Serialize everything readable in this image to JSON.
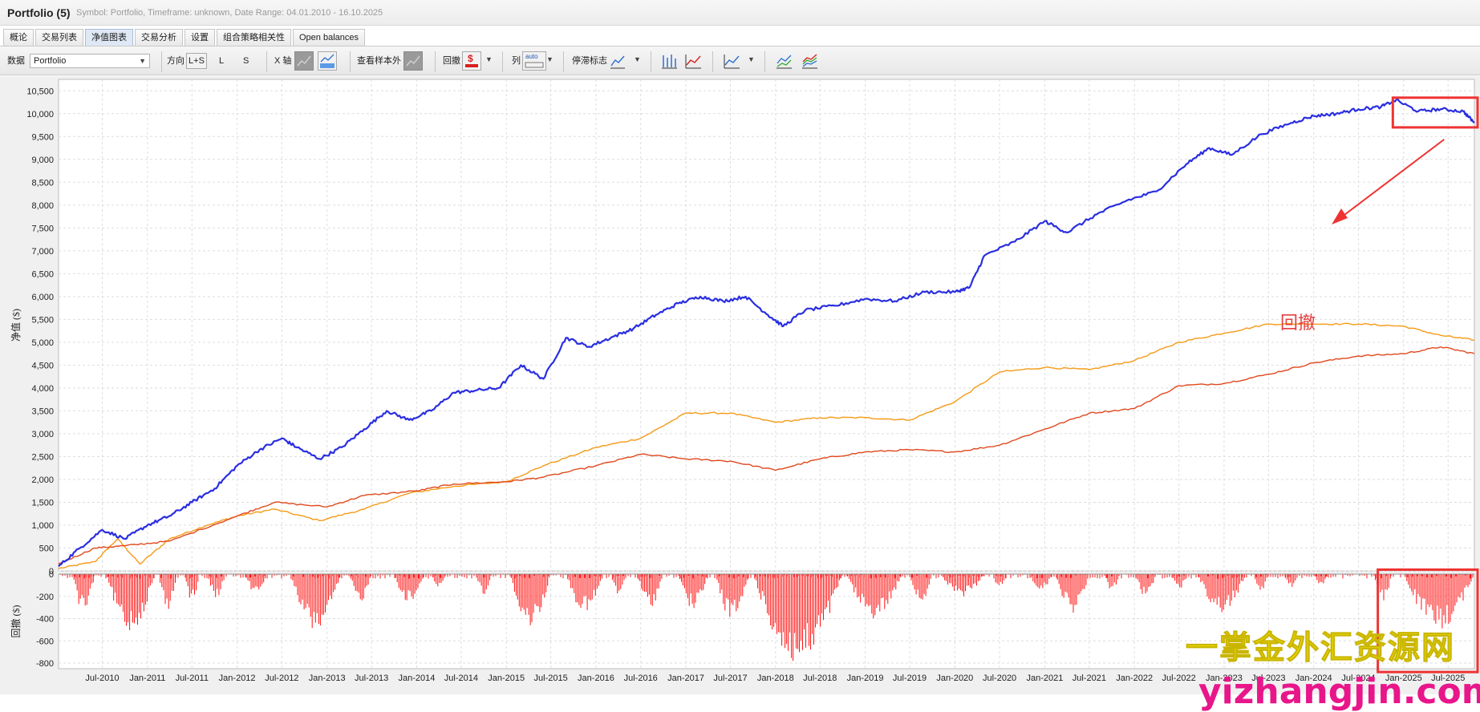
{
  "window": {
    "title": "Portfolio (5)",
    "subtitle": "Symbol: Portfolio, Timeframe: unknown, Date Range: 04.01.2010 - 16.10.2025"
  },
  "tabs": [
    {
      "label": "概论",
      "active": false
    },
    {
      "label": "交易列表",
      "active": false
    },
    {
      "label": "净值图表",
      "active": true
    },
    {
      "label": "交易分析",
      "active": false
    },
    {
      "label": "设置",
      "active": false
    },
    {
      "label": "组合策略相关性",
      "active": false
    },
    {
      "label": "Open balances",
      "active": false
    }
  ],
  "toolbar": {
    "data_label": "数据",
    "data_value": "Portfolio",
    "direction_label": "方向",
    "dir_all": "L+S",
    "dir_long": "L",
    "dir_short": "S",
    "xaxis_label": "X 轴",
    "oos_label": "查看样本外",
    "drawdown_label": "回撤",
    "columns_label": "列",
    "columns_icon_text": "auto",
    "stagnation_label": "停滞标志"
  },
  "annotation": {
    "text": "回撤",
    "color": "#e53f3f"
  },
  "watermark": {
    "cn": "一掌金外汇资源网",
    "en": "yizhangjin.com"
  },
  "colors": {
    "portfolio": "#2a2ee0",
    "strategy_orange": "#f59a16",
    "strategy_red": "#e0481c",
    "drawdown": "#ff1010",
    "highlight": "#ee3333"
  },
  "chart_data": {
    "type": "line",
    "ylabel": "净值 ($)",
    "ylim": [
      0,
      10750
    ],
    "yticks": [
      0,
      500,
      1000,
      1500,
      2000,
      2500,
      3000,
      3500,
      4000,
      4500,
      5000,
      5500,
      6000,
      6500,
      7000,
      7500,
      8000,
      8500,
      9000,
      9500,
      10000,
      10500
    ],
    "ytick_labels": [
      "0",
      "500",
      "1,000",
      "1,500",
      "2,000",
      "2,500",
      "3,000",
      "3,500",
      "4,000",
      "4,500",
      "5,000",
      "5,500",
      "6,000",
      "6,500",
      "7,000",
      "7,500",
      "8,000",
      "8,500",
      "9,000",
      "9,500",
      "10,000",
      "10,500"
    ],
    "x_range": [
      "2010-01-04",
      "2025-10-16"
    ],
    "xtick_labels": [
      "Jul-2010",
      "Jan-2011",
      "Jul-2011",
      "Jan-2012",
      "Jul-2012",
      "Jan-2013",
      "Jul-2013",
      "Jan-2014",
      "Jul-2014",
      "Jan-2015",
      "Jul-2015",
      "Jan-2016",
      "Jul-2016",
      "Jan-2017",
      "Jul-2017",
      "Jan-2018",
      "Jul-2018",
      "Jan-2019",
      "Jul-2019",
      "Jan-2020",
      "Jul-2020",
      "Jan-2021",
      "Jul-2021",
      "Jan-2022",
      "Jul-2022",
      "Jan-2023",
      "Jul-2023",
      "Jan-2024",
      "Jul-2024",
      "Jan-2025",
      "Jul-2025"
    ],
    "grid": true,
    "series": [
      {
        "color_key": "portfolio",
        "points": [
          [
            "2010-01-04",
            100
          ],
          [
            "2010-04-01",
            500
          ],
          [
            "2010-07-01",
            900
          ],
          [
            "2010-10-01",
            700
          ],
          [
            "2011-01-01",
            1000
          ],
          [
            "2011-04-01",
            1200
          ],
          [
            "2011-07-01",
            1500
          ],
          [
            "2011-10-01",
            1800
          ],
          [
            "2012-01-01",
            2300
          ],
          [
            "2012-04-01",
            2650
          ],
          [
            "2012-07-01",
            2900
          ],
          [
            "2012-09-01",
            2700
          ],
          [
            "2012-12-01",
            2450
          ],
          [
            "2013-03-01",
            2700
          ],
          [
            "2013-06-01",
            3100
          ],
          [
            "2013-09-01",
            3500
          ],
          [
            "2013-12-01",
            3300
          ],
          [
            "2014-03-01",
            3500
          ],
          [
            "2014-06-01",
            3900
          ],
          [
            "2014-09-01",
            3950
          ],
          [
            "2014-12-01",
            4000
          ],
          [
            "2015-03-01",
            4500
          ],
          [
            "2015-06-01",
            4200
          ],
          [
            "2015-09-01",
            5100
          ],
          [
            "2015-12-01",
            4900
          ],
          [
            "2016-03-01",
            5100
          ],
          [
            "2016-06-01",
            5300
          ],
          [
            "2016-09-01",
            5600
          ],
          [
            "2016-12-01",
            5850
          ],
          [
            "2017-03-01",
            6000
          ],
          [
            "2017-06-01",
            5900
          ],
          [
            "2017-09-01",
            6000
          ],
          [
            "2017-12-01",
            5600
          ],
          [
            "2018-02-01",
            5350
          ],
          [
            "2018-05-01",
            5700
          ],
          [
            "2018-09-01",
            5800
          ],
          [
            "2019-01-01",
            5950
          ],
          [
            "2019-05-01",
            5900
          ],
          [
            "2019-09-01",
            6100
          ],
          [
            "2020-01-01",
            6100
          ],
          [
            "2020-03-01",
            6200
          ],
          [
            "2020-05-01",
            6900
          ],
          [
            "2020-09-01",
            7200
          ],
          [
            "2021-01-01",
            7650
          ],
          [
            "2021-04-01",
            7400
          ],
          [
            "2021-08-01",
            7800
          ],
          [
            "2021-12-01",
            8100
          ],
          [
            "2022-04-01",
            8300
          ],
          [
            "2022-08-01",
            8900
          ],
          [
            "2022-11-01",
            9250
          ],
          [
            "2023-02-01",
            9100
          ],
          [
            "2023-06-01",
            9550
          ],
          [
            "2023-10-01",
            9800
          ],
          [
            "2024-01-01",
            9950
          ],
          [
            "2024-04-01",
            10000
          ],
          [
            "2024-07-01",
            10100
          ],
          [
            "2024-10-01",
            10150
          ],
          [
            "2024-12-01",
            10300
          ],
          [
            "2025-03-01",
            10050
          ],
          [
            "2025-06-01",
            10100
          ],
          [
            "2025-09-01",
            10050
          ],
          [
            "2025-10-16",
            9800
          ]
        ]
      },
      {
        "color_key": "strategy_orange",
        "points": [
          [
            "2010-01-04",
            50
          ],
          [
            "2010-06-01",
            200
          ],
          [
            "2010-09-01",
            700
          ],
          [
            "2010-12-01",
            150
          ],
          [
            "2011-04-01",
            700
          ],
          [
            "2011-09-01",
            1000
          ],
          [
            "2012-01-01",
            1200
          ],
          [
            "2012-06-01",
            1350
          ],
          [
            "2012-12-01",
            1100
          ],
          [
            "2013-06-01",
            1350
          ],
          [
            "2013-12-01",
            1700
          ],
          [
            "2014-06-01",
            1850
          ],
          [
            "2015-01-01",
            1950
          ],
          [
            "2015-06-01",
            2300
          ],
          [
            "2016-01-01",
            2700
          ],
          [
            "2016-07-01",
            2900
          ],
          [
            "2017-01-01",
            3450
          ],
          [
            "2017-07-01",
            3450
          ],
          [
            "2018-01-01",
            3250
          ],
          [
            "2018-07-01",
            3350
          ],
          [
            "2019-01-01",
            3350
          ],
          [
            "2019-07-01",
            3300
          ],
          [
            "2020-01-01",
            3700
          ],
          [
            "2020-07-01",
            4350
          ],
          [
            "2021-01-01",
            4450
          ],
          [
            "2021-07-01",
            4400
          ],
          [
            "2022-01-01",
            4600
          ],
          [
            "2022-07-01",
            5000
          ],
          [
            "2023-01-01",
            5200
          ],
          [
            "2023-07-01",
            5400
          ],
          [
            "2024-01-01",
            5400
          ],
          [
            "2024-07-01",
            5400
          ],
          [
            "2025-01-01",
            5350
          ],
          [
            "2025-06-01",
            5150
          ],
          [
            "2025-10-16",
            5050
          ]
        ]
      },
      {
        "color_key": "strategy_red",
        "points": [
          [
            "2010-01-04",
            150
          ],
          [
            "2010-06-01",
            500
          ],
          [
            "2010-10-01",
            550
          ],
          [
            "2011-04-01",
            650
          ],
          [
            "2012-01-01",
            1200
          ],
          [
            "2012-06-01",
            1500
          ],
          [
            "2013-01-01",
            1400
          ],
          [
            "2013-06-01",
            1650
          ],
          [
            "2014-01-01",
            1750
          ],
          [
            "2014-06-01",
            1900
          ],
          [
            "2015-01-01",
            1950
          ],
          [
            "2015-06-01",
            2050
          ],
          [
            "2016-01-01",
            2300
          ],
          [
            "2016-07-01",
            2550
          ],
          [
            "2017-01-01",
            2450
          ],
          [
            "2017-07-01",
            2400
          ],
          [
            "2018-01-01",
            2200
          ],
          [
            "2018-07-01",
            2450
          ],
          [
            "2019-01-01",
            2600
          ],
          [
            "2019-07-01",
            2650
          ],
          [
            "2020-01-01",
            2600
          ],
          [
            "2020-07-01",
            2750
          ],
          [
            "2021-01-01",
            3100
          ],
          [
            "2021-07-01",
            3450
          ],
          [
            "2022-01-01",
            3550
          ],
          [
            "2022-07-01",
            4050
          ],
          [
            "2023-01-01",
            4100
          ],
          [
            "2023-07-01",
            4300
          ],
          [
            "2024-01-01",
            4550
          ],
          [
            "2024-07-01",
            4700
          ],
          [
            "2025-01-01",
            4750
          ],
          [
            "2025-06-01",
            4900
          ],
          [
            "2025-10-16",
            4750
          ]
        ]
      }
    ],
    "drawdown": {
      "ylabel": "回撤 ($)",
      "ylim": [
        -850,
        0
      ],
      "yticks": [
        0,
        -200,
        -400,
        -600,
        -800
      ],
      "ytick_labels": [
        "0",
        "-200",
        "-400",
        "-600",
        "-800"
      ],
      "episodes": [
        {
          "start": "2010-03-01",
          "end": "2010-06-01",
          "min": -350
        },
        {
          "start": "2010-07-15",
          "end": "2011-02-01",
          "min": -520
        },
        {
          "start": "2011-02-15",
          "end": "2011-05-01",
          "min": -320
        },
        {
          "start": "2011-06-01",
          "end": "2011-08-01",
          "min": -250
        },
        {
          "start": "2011-09-01",
          "end": "2011-11-15",
          "min": -220
        },
        {
          "start": "2012-02-01",
          "end": "2012-05-01",
          "min": -180
        },
        {
          "start": "2012-08-01",
          "end": "2013-03-01",
          "min": -520
        },
        {
          "start": "2013-04-01",
          "end": "2013-07-01",
          "min": -250
        },
        {
          "start": "2013-10-01",
          "end": "2014-02-01",
          "min": -260
        },
        {
          "start": "2014-03-01",
          "end": "2014-05-01",
          "min": -120
        },
        {
          "start": "2014-09-01",
          "end": "2014-11-01",
          "min": -200
        },
        {
          "start": "2015-01-15",
          "end": "2015-07-01",
          "min": -480
        },
        {
          "start": "2015-09-01",
          "end": "2016-02-01",
          "min": -350
        },
        {
          "start": "2016-03-01",
          "end": "2016-05-01",
          "min": -200
        },
        {
          "start": "2016-06-15",
          "end": "2016-10-01",
          "min": -300
        },
        {
          "start": "2016-12-01",
          "end": "2017-04-01",
          "min": -320
        },
        {
          "start": "2017-05-01",
          "end": "2017-09-15",
          "min": -420
        },
        {
          "start": "2017-10-01",
          "end": "2018-10-01",
          "min": -840
        },
        {
          "start": "2018-10-15",
          "end": "2019-06-01",
          "min": -400
        },
        {
          "start": "2019-07-01",
          "end": "2019-10-01",
          "min": -250
        },
        {
          "start": "2019-11-01",
          "end": "2020-05-01",
          "min": -200
        },
        {
          "start": "2020-06-01",
          "end": "2020-08-01",
          "min": -120
        },
        {
          "start": "2020-11-01",
          "end": "2021-02-01",
          "min": -150
        },
        {
          "start": "2021-02-15",
          "end": "2021-07-01",
          "min": -350
        },
        {
          "start": "2021-09-01",
          "end": "2021-11-01",
          "min": -150
        },
        {
          "start": "2022-01-01",
          "end": "2022-04-01",
          "min": -200
        },
        {
          "start": "2022-06-01",
          "end": "2022-08-01",
          "min": -150
        },
        {
          "start": "2022-09-15",
          "end": "2023-04-01",
          "min": -350
        },
        {
          "start": "2023-05-01",
          "end": "2023-07-01",
          "min": -150
        },
        {
          "start": "2023-09-01",
          "end": "2023-11-01",
          "min": -120
        },
        {
          "start": "2024-01-01",
          "end": "2024-03-01",
          "min": -100
        },
        {
          "start": "2024-09-01",
          "end": "2024-11-15",
          "min": -250
        },
        {
          "start": "2025-01-01",
          "end": "2025-10-16",
          "min": -500
        }
      ]
    },
    "highlights": [
      {
        "x_start": "2024-12-01",
        "x_end": "2025-10-16",
        "y_top": 10350,
        "y_bottom": 9700
      },
      {
        "x_start": "2024-10-01",
        "x_end": "2025-10-16",
        "drawdown_top": 40,
        "drawdown_bottom": -880
      }
    ]
  }
}
